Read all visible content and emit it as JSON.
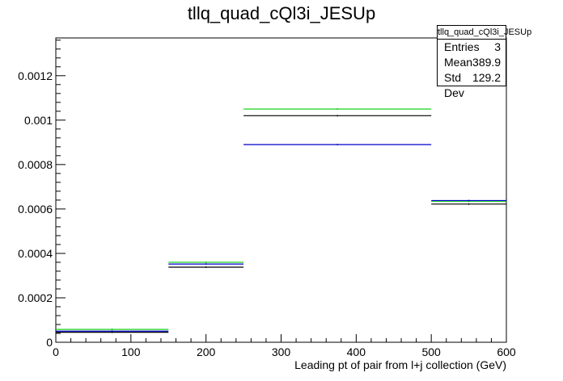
{
  "chart_data": {
    "type": "histogram",
    "title": "tllq_quad_cQl3i_JESUp",
    "xlabel": "Leading pt of pair from l+j collection (GeV)",
    "ylabel": "",
    "xlim": [
      0,
      600
    ],
    "ylim": [
      0,
      0.00137
    ],
    "x_ticks": [
      "0",
      "100",
      "200",
      "300",
      "400",
      "500",
      "600"
    ],
    "y_ticks": [
      "0",
      "0.0002",
      "0.0004",
      "0.0006",
      "0.0008",
      "0.001",
      "0.0012"
    ],
    "bins": [
      0,
      150,
      250,
      500,
      600
    ],
    "series": [
      {
        "color": "#000000",
        "values": [
          4.5e-05,
          0.000338,
          0.00102,
          0.000622
        ]
      },
      {
        "color": "#00cc00",
        "values": [
          5.8e-05,
          0.00036,
          0.00105,
          0.000635
        ]
      },
      {
        "color": "#0000cc",
        "values": [
          5e-05,
          0.000352,
          0.00089,
          0.000638
        ]
      }
    ],
    "grid": false,
    "legend": "top-right"
  },
  "stats": {
    "title": "tllq_quad_cQl3i_JESUp",
    "entries_label": "Entries",
    "entries_value": "3",
    "mean_label": "Mean",
    "mean_value": "389.9",
    "std_label": "Std Dev",
    "std_value": "129.2"
  }
}
